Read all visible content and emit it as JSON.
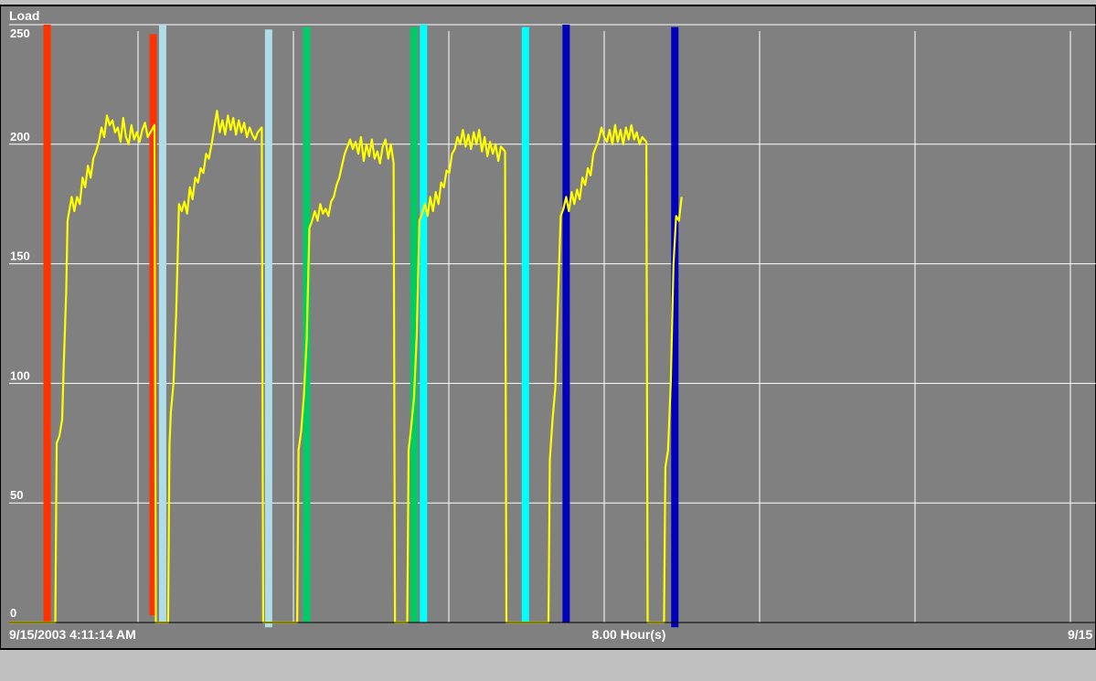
{
  "header": {
    "title": "Load"
  },
  "chart_data": {
    "type": "line",
    "ylabel": "Load",
    "ylim": [
      0,
      250
    ],
    "y_ticks": [
      "0",
      "50",
      "100",
      "150",
      "200",
      "250"
    ],
    "grid": true,
    "x_span_hours": 8.0,
    "x_label_left": "9/15/2003 4:11:14 AM",
    "x_label_center": "8.00 Hour(s)",
    "x_label_right": "9/15",
    "colors": {
      "background": "#808080",
      "grid": "#ffffff",
      "line": "#ffff00",
      "frame": "#000000"
    },
    "series": [
      {
        "color": "#ffff00",
        "points": [
          [
            0.0,
            0
          ],
          [
            0.34,
            0
          ],
          [
            0.35,
            75
          ],
          [
            0.37,
            78
          ],
          [
            0.39,
            85
          ],
          [
            0.4,
            105
          ],
          [
            0.42,
            138
          ],
          [
            0.43,
            168
          ],
          [
            0.46,
            178
          ],
          [
            0.48,
            172
          ],
          [
            0.5,
            178
          ],
          [
            0.52,
            175
          ],
          [
            0.54,
            186
          ],
          [
            0.56,
            182
          ],
          [
            0.58,
            191
          ],
          [
            0.6,
            186
          ],
          [
            0.62,
            194
          ],
          [
            0.64,
            197
          ],
          [
            0.66,
            201
          ],
          [
            0.68,
            207
          ],
          [
            0.7,
            203
          ],
          [
            0.72,
            212
          ],
          [
            0.74,
            208
          ],
          [
            0.76,
            210
          ],
          [
            0.78,
            205
          ],
          [
            0.8,
            207
          ],
          [
            0.82,
            201
          ],
          [
            0.84,
            211
          ],
          [
            0.86,
            203
          ],
          [
            0.88,
            200
          ],
          [
            0.9,
            208
          ],
          [
            0.92,
            202
          ],
          [
            0.94,
            205
          ],
          [
            0.96,
            201
          ],
          [
            0.98,
            206
          ],
          [
            1.0,
            209
          ],
          [
            1.02,
            203
          ],
          [
            1.04,
            205
          ],
          [
            1.07,
            208
          ],
          [
            1.08,
            0
          ],
          [
            1.17,
            0
          ],
          [
            1.18,
            74
          ],
          [
            1.19,
            88
          ],
          [
            1.21,
            100
          ],
          [
            1.23,
            130
          ],
          [
            1.25,
            175
          ],
          [
            1.27,
            172
          ],
          [
            1.29,
            176
          ],
          [
            1.31,
            171
          ],
          [
            1.33,
            182
          ],
          [
            1.35,
            177
          ],
          [
            1.37,
            186
          ],
          [
            1.39,
            184
          ],
          [
            1.41,
            190
          ],
          [
            1.43,
            188
          ],
          [
            1.45,
            196
          ],
          [
            1.47,
            194
          ],
          [
            1.49,
            200
          ],
          [
            1.51,
            207
          ],
          [
            1.53,
            214
          ],
          [
            1.55,
            205
          ],
          [
            1.57,
            210
          ],
          [
            1.59,
            204
          ],
          [
            1.61,
            212
          ],
          [
            1.63,
            206
          ],
          [
            1.65,
            211
          ],
          [
            1.67,
            204
          ],
          [
            1.69,
            210
          ],
          [
            1.71,
            205
          ],
          [
            1.73,
            209
          ],
          [
            1.75,
            203
          ],
          [
            1.77,
            207
          ],
          [
            1.79,
            204
          ],
          [
            1.81,
            202
          ],
          [
            1.83,
            205
          ],
          [
            1.86,
            207
          ],
          [
            1.87,
            0
          ],
          [
            2.12,
            0
          ],
          [
            2.13,
            72
          ],
          [
            2.15,
            80
          ],
          [
            2.17,
            95
          ],
          [
            2.19,
            118
          ],
          [
            2.21,
            165
          ],
          [
            2.23,
            168
          ],
          [
            2.25,
            172
          ],
          [
            2.27,
            168
          ],
          [
            2.29,
            175
          ],
          [
            2.31,
            171
          ],
          [
            2.33,
            173
          ],
          [
            2.35,
            170
          ],
          [
            2.37,
            176
          ],
          [
            2.39,
            178
          ],
          [
            2.41,
            183
          ],
          [
            2.43,
            186
          ],
          [
            2.45,
            191
          ],
          [
            2.47,
            196
          ],
          [
            2.49,
            199
          ],
          [
            2.51,
            202
          ],
          [
            2.53,
            198
          ],
          [
            2.55,
            201
          ],
          [
            2.57,
            196
          ],
          [
            2.59,
            203
          ],
          [
            2.61,
            193
          ],
          [
            2.63,
            200
          ],
          [
            2.65,
            195
          ],
          [
            2.67,
            202
          ],
          [
            2.69,
            194
          ],
          [
            2.71,
            197
          ],
          [
            2.73,
            192
          ],
          [
            2.75,
            199
          ],
          [
            2.77,
            202
          ],
          [
            2.79,
            194
          ],
          [
            2.81,
            200
          ],
          [
            2.83,
            192
          ],
          [
            2.84,
            0
          ],
          [
            2.93,
            0
          ],
          [
            2.94,
            72
          ],
          [
            2.96,
            82
          ],
          [
            2.98,
            94
          ],
          [
            3.0,
            120
          ],
          [
            3.02,
            168
          ],
          [
            3.04,
            171
          ],
          [
            3.06,
            175
          ],
          [
            3.08,
            170
          ],
          [
            3.1,
            178
          ],
          [
            3.12,
            172
          ],
          [
            3.14,
            180
          ],
          [
            3.16,
            175
          ],
          [
            3.18,
            184
          ],
          [
            3.2,
            182
          ],
          [
            3.22,
            189
          ],
          [
            3.24,
            188
          ],
          [
            3.26,
            196
          ],
          [
            3.28,
            198
          ],
          [
            3.3,
            203
          ],
          [
            3.32,
            200
          ],
          [
            3.34,
            206
          ],
          [
            3.36,
            199
          ],
          [
            3.38,
            204
          ],
          [
            3.4,
            198
          ],
          [
            3.42,
            205
          ],
          [
            3.44,
            200
          ],
          [
            3.46,
            206
          ],
          [
            3.48,
            197
          ],
          [
            3.5,
            203
          ],
          [
            3.52,
            195
          ],
          [
            3.54,
            201
          ],
          [
            3.56,
            196
          ],
          [
            3.58,
            200
          ],
          [
            3.6,
            193
          ],
          [
            3.62,
            199
          ],
          [
            3.65,
            197
          ],
          [
            3.66,
            0
          ],
          [
            3.97,
            0
          ],
          [
            3.98,
            68
          ],
          [
            4.0,
            85
          ],
          [
            4.02,
            98
          ],
          [
            4.04,
            135
          ],
          [
            4.06,
            170
          ],
          [
            4.08,
            173
          ],
          [
            4.1,
            178
          ],
          [
            4.12,
            172
          ],
          [
            4.14,
            180
          ],
          [
            4.16,
            175
          ],
          [
            4.18,
            181
          ],
          [
            4.2,
            177
          ],
          [
            4.22,
            186
          ],
          [
            4.24,
            183
          ],
          [
            4.26,
            190
          ],
          [
            4.28,
            187
          ],
          [
            4.3,
            196
          ],
          [
            4.32,
            199
          ],
          [
            4.34,
            202
          ],
          [
            4.36,
            207
          ],
          [
            4.38,
            203
          ],
          [
            4.4,
            201
          ],
          [
            4.42,
            206
          ],
          [
            4.44,
            200
          ],
          [
            4.46,
            208
          ],
          [
            4.48,
            201
          ],
          [
            4.5,
            206
          ],
          [
            4.52,
            200
          ],
          [
            4.54,
            207
          ],
          [
            4.56,
            202
          ],
          [
            4.58,
            208
          ],
          [
            4.6,
            202
          ],
          [
            4.62,
            205
          ],
          [
            4.64,
            200
          ],
          [
            4.66,
            203
          ],
          [
            4.69,
            201
          ],
          [
            4.7,
            0
          ],
          [
            4.82,
            0
          ],
          [
            4.83,
            65
          ],
          [
            4.85,
            72
          ],
          [
            4.87,
            100
          ],
          [
            4.89,
            150
          ],
          [
            4.91,
            170
          ],
          [
            4.93,
            168
          ],
          [
            4.95,
            178
          ]
        ]
      }
    ],
    "markers": [
      {
        "x": 0.28,
        "y_top": 250,
        "y_bottom": 0,
        "color": "#ff3300"
      },
      {
        "x": 1.06,
        "y_top": 246,
        "y_bottom": 3,
        "color": "#ff3300"
      },
      {
        "x": 1.13,
        "y_top": 250,
        "y_bottom": 0,
        "color": "#b0dcea"
      },
      {
        "x": 1.91,
        "y_top": 248,
        "y_bottom": -2,
        "color": "#b0dcea"
      },
      {
        "x": 2.19,
        "y_top": 249,
        "y_bottom": 0,
        "color": "#00cc66"
      },
      {
        "x": 2.98,
        "y_top": 249,
        "y_bottom": 0,
        "color": "#00cc66"
      },
      {
        "x": 3.05,
        "y_top": 250,
        "y_bottom": 0,
        "color": "#00ffff"
      },
      {
        "x": 3.8,
        "y_top": 249,
        "y_bottom": 0,
        "color": "#00ffff"
      },
      {
        "x": 4.1,
        "y_top": 250,
        "y_bottom": 0,
        "color": "#0000bb"
      },
      {
        "x": 4.9,
        "y_top": 249,
        "y_bottom": -2,
        "color": "#0000bb"
      }
    ]
  }
}
